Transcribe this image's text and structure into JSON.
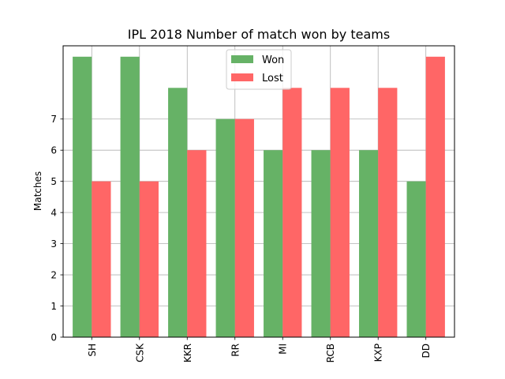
{
  "chart_data": {
    "type": "bar",
    "title": "IPL 2018 Number of match won by teams",
    "xlabel": "",
    "ylabel": "Matches",
    "categories": [
      "SH",
      "CSK",
      "KKR",
      "RR",
      "MI",
      "RCB",
      "KXP",
      "DD"
    ],
    "series": [
      {
        "name": "Won",
        "values": [
          9,
          9,
          8,
          7,
          6,
          6,
          6,
          5
        ],
        "color": "#66b266"
      },
      {
        "name": "Lost",
        "values": [
          5,
          5,
          6,
          7,
          8,
          8,
          8,
          9
        ],
        "color": "#ff6666"
      }
    ],
    "ylim": [
      0,
      9.35
    ],
    "yticks": [
      0,
      1,
      2,
      3,
      4,
      5,
      6,
      7
    ],
    "grid": true,
    "legend_position": "top-center"
  }
}
